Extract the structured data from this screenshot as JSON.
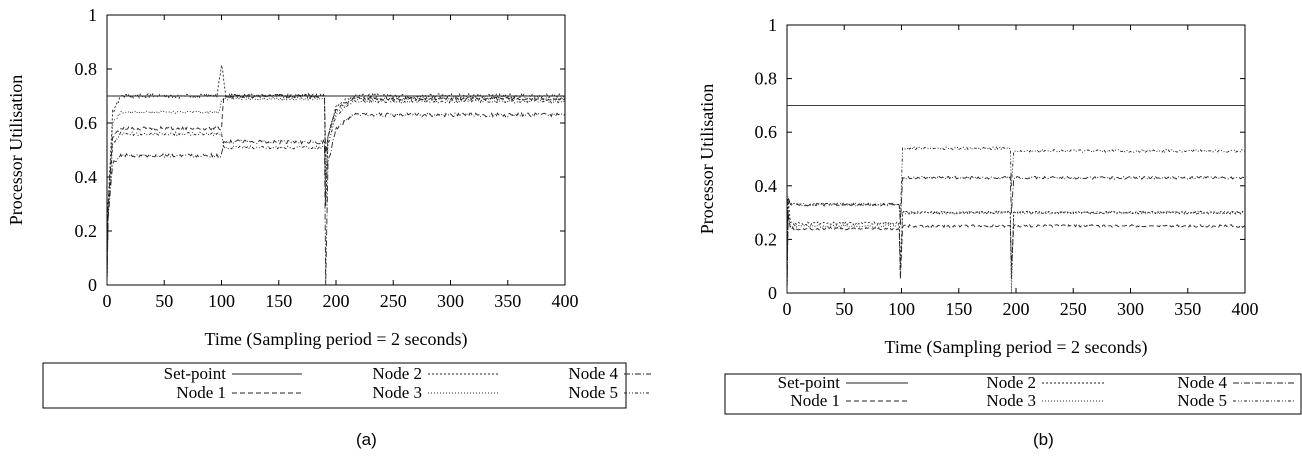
{
  "chart_data": [
    {
      "type": "line",
      "caption": "(a)",
      "xlabel": "Time (Sampling period = 2 seconds)",
      "ylabel": "Processor Utilisation",
      "xlim": [
        0,
        400
      ],
      "ylim": [
        0,
        1
      ],
      "xticks": [
        "0",
        "50",
        "100",
        "150",
        "200",
        "250",
        "300",
        "350",
        "400"
      ],
      "yticks": [
        "0",
        "0.2",
        "0.4",
        "0.6",
        "0.8",
        "1"
      ],
      "legend_position": "below",
      "series": [
        {
          "name": "Set-point",
          "dash": "",
          "x": [
            0,
            400
          ],
          "y": [
            0.7,
            0.7
          ],
          "noise": 0
        },
        {
          "name": "Node 1",
          "dash": "5,3",
          "x": [
            0,
            1,
            5,
            12,
            100,
            102,
            190,
            191,
            193,
            200,
            215,
            400
          ],
          "y": [
            0,
            0.3,
            0.55,
            0.58,
            0.58,
            0.7,
            0.7,
            0.48,
            0.55,
            0.65,
            0.69,
            0.69
          ],
          "noise": 0.006
        },
        {
          "name": "Node 2",
          "dash": "2,2",
          "x": [
            0,
            1,
            5,
            12,
            96,
            100,
            104,
            190,
            191,
            193,
            200,
            215,
            400
          ],
          "y": [
            0,
            0.3,
            0.64,
            0.7,
            0.7,
            0.82,
            0.7,
            0.7,
            0.3,
            0.55,
            0.66,
            0.7,
            0.7
          ],
          "noise": 0.008
        },
        {
          "name": "Node 3",
          "dash": "1,2",
          "x": [
            0,
            1,
            5,
            12,
            98,
            100,
            190,
            191,
            193,
            200,
            215,
            400
          ],
          "y": [
            0,
            0.25,
            0.6,
            0.64,
            0.64,
            0.69,
            0.69,
            0.4,
            0.55,
            0.64,
            0.69,
            0.69
          ],
          "noise": 0.005
        },
        {
          "name": "Node 4",
          "dash": "6,2,1,2",
          "x": [
            0,
            1,
            5,
            12,
            100,
            102,
            190,
            191,
            193,
            200,
            215,
            400
          ],
          "y": [
            0,
            0.25,
            0.45,
            0.48,
            0.48,
            0.53,
            0.53,
            0,
            0.45,
            0.58,
            0.63,
            0.63
          ],
          "noise": 0.007
        },
        {
          "name": "Node 5",
          "dash": "3,2,1,2,1,2",
          "x": [
            0,
            1,
            5,
            12,
            100,
            102,
            190,
            191,
            193,
            200,
            215,
            400
          ],
          "y": [
            0,
            0.25,
            0.52,
            0.56,
            0.56,
            0.51,
            0.51,
            0.3,
            0.52,
            0.63,
            0.68,
            0.68
          ],
          "noise": 0.006
        }
      ]
    },
    {
      "type": "line",
      "caption": "(b)",
      "xlabel": "Time (Sampling period = 2 seconds)",
      "ylabel": "Processor Utilisation",
      "xlim": [
        0,
        400
      ],
      "ylim": [
        0,
        1
      ],
      "xticks": [
        "0",
        "50",
        "100",
        "150",
        "200",
        "250",
        "300",
        "350",
        "400"
      ],
      "yticks": [
        "0",
        "0.2",
        "0.4",
        "0.6",
        "0.8",
        "1"
      ],
      "legend_position": "below",
      "series": [
        {
          "name": "Set-point",
          "dash": "",
          "x": [
            0,
            400
          ],
          "y": [
            0.7,
            0.7
          ],
          "noise": 0
        },
        {
          "name": "Node 1",
          "dash": "5,3",
          "x": [
            0,
            1,
            3,
            98,
            99,
            101,
            195,
            196,
            198,
            400
          ],
          "y": [
            0,
            0.3,
            0.24,
            0.24,
            0.05,
            0.25,
            0.25,
            0.1,
            0.25,
            0.25
          ],
          "noise": 0.005
        },
        {
          "name": "Node 2",
          "dash": "2,2",
          "x": [
            0,
            1,
            3,
            98,
            99,
            101,
            195,
            196,
            198,
            400
          ],
          "y": [
            0,
            0.35,
            0.26,
            0.26,
            0.1,
            0.3,
            0.3,
            0.05,
            0.3,
            0.3
          ],
          "noise": 0.005
        },
        {
          "name": "Node 3",
          "dash": "1,2",
          "x": [
            0,
            1,
            3,
            98,
            99,
            101,
            195,
            196,
            198,
            400
          ],
          "y": [
            0,
            0.3,
            0.25,
            0.25,
            0.05,
            0.3,
            0.3,
            0,
            0.3,
            0.3
          ],
          "noise": 0.005
        },
        {
          "name": "Node 4",
          "dash": "6,2,1,2",
          "x": [
            0,
            1,
            3,
            98,
            99,
            101,
            195,
            196,
            198,
            400
          ],
          "y": [
            0,
            0.36,
            0.33,
            0.33,
            0.25,
            0.43,
            0.43,
            0.3,
            0.43,
            0.43
          ],
          "noise": 0.005
        },
        {
          "name": "Node 5",
          "dash": "3,2,1,2,1,2",
          "x": [
            0,
            1,
            3,
            98,
            99,
            101,
            195,
            196,
            198,
            400
          ],
          "y": [
            0,
            0.36,
            0.33,
            0.33,
            0.28,
            0.54,
            0.54,
            0.4,
            0.53,
            0.53
          ],
          "noise": 0.005
        }
      ]
    }
  ]
}
